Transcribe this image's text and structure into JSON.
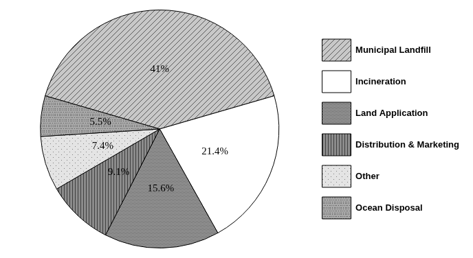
{
  "chart_data": {
    "type": "pie",
    "categories": [
      "Municipal Landfill",
      "Incineration",
      "Land Application",
      "Distribution & Marketing",
      "Other",
      "Ocean Disposal"
    ],
    "values": [
      41,
      21.4,
      15.6,
      9.1,
      7.4,
      5.5
    ],
    "value_labels": [
      "41%",
      "21.4%",
      "15.6%",
      "9.1%",
      "7.4%",
      "5.5%"
    ],
    "colors": [
      "#c8c8c8",
      "#ffffff",
      "#9a9a9a",
      "#8c8c8c",
      "#e4e4e4",
      "#a8a8a8"
    ],
    "legend": "right",
    "data_labels": true
  }
}
